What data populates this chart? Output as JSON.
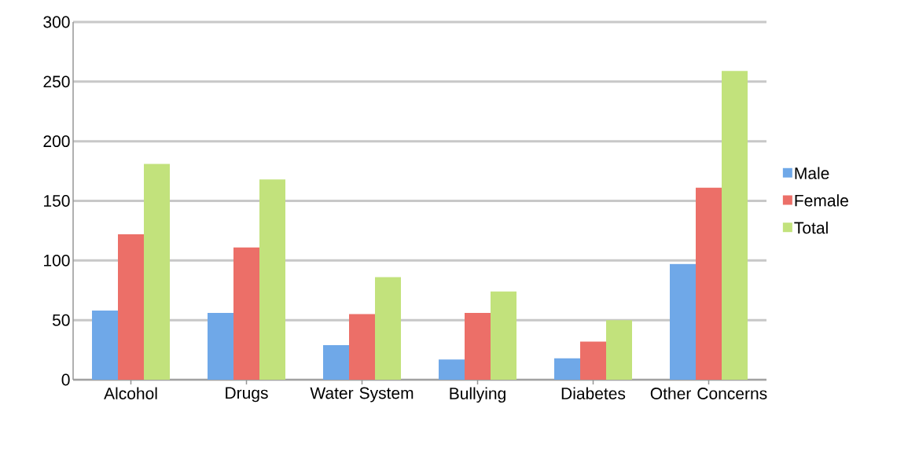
{
  "chart_data": {
    "type": "bar",
    "categories": [
      "Alcohol",
      "Drugs",
      "Water System",
      "Bullying",
      "Diabetes",
      "Other Concerns"
    ],
    "series": [
      {
        "name": "Male",
        "color": "#6fa8e8",
        "values": [
          58,
          56,
          29,
          17,
          18,
          97
        ]
      },
      {
        "name": "Female",
        "color": "#ec6f68",
        "values": [
          122,
          111,
          55,
          56,
          32,
          161
        ]
      },
      {
        "name": "Total",
        "color": "#c2e27c",
        "values": [
          181,
          168,
          86,
          74,
          50,
          259
        ]
      }
    ],
    "ylim": [
      0,
      300
    ],
    "yticks": [
      0,
      50,
      100,
      150,
      200,
      250,
      300
    ],
    "grid": "y",
    "legend": "right"
  }
}
